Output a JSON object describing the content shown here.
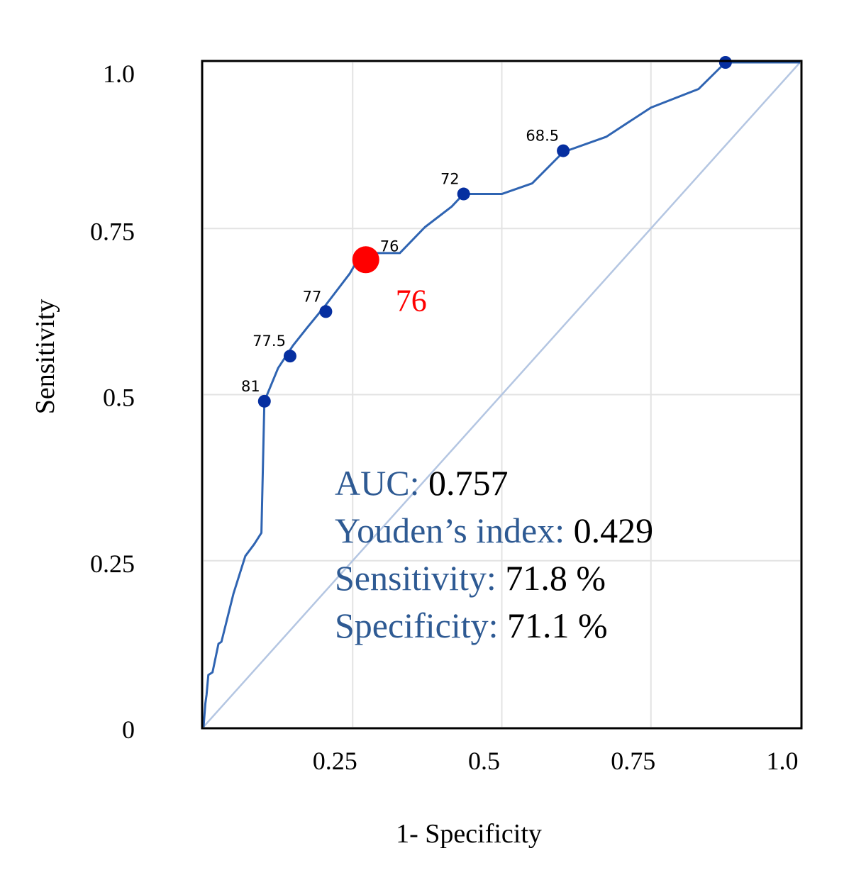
{
  "chart_data": {
    "type": "line",
    "xlabel": "1- Specificity",
    "ylabel": "Sensitivity",
    "xlim": [
      0.0,
      1.0
    ],
    "ylim": [
      0.0,
      1.0
    ],
    "grid": true,
    "x_ticks": [
      {
        "value": 0.25,
        "label": "0.25"
      },
      {
        "value": 0.5,
        "label": "0.5"
      },
      {
        "value": 0.75,
        "label": "0.75"
      },
      {
        "value": 1.0,
        "label": "1.0"
      }
    ],
    "y_ticks": [
      {
        "value": 0,
        "label": "0"
      },
      {
        "value": 0.25,
        "label": "0.25"
      },
      {
        "value": 0.5,
        "label": "0.5"
      },
      {
        "value": 0.75,
        "label": "0.75"
      },
      {
        "value": 1.0,
        "label": "1.0"
      }
    ],
    "roc_curve": [
      [
        0.0,
        0.0
      ],
      [
        0.003,
        0.035
      ],
      [
        0.005,
        0.048
      ],
      [
        0.008,
        0.078
      ],
      [
        0.015,
        0.082
      ],
      [
        0.025,
        0.125
      ],
      [
        0.03,
        0.128
      ],
      [
        0.05,
        0.2
      ],
      [
        0.07,
        0.257
      ],
      [
        0.085,
        0.275
      ],
      [
        0.097,
        0.292
      ],
      [
        0.102,
        0.49
      ],
      [
        0.125,
        0.54
      ],
      [
        0.15,
        0.574
      ],
      [
        0.173,
        0.6
      ],
      [
        0.205,
        0.635
      ],
      [
        0.245,
        0.682
      ],
      [
        0.265,
        0.713
      ],
      [
        0.329,
        0.713
      ],
      [
        0.371,
        0.752
      ],
      [
        0.416,
        0.783
      ],
      [
        0.436,
        0.802
      ],
      [
        0.5,
        0.802
      ],
      [
        0.551,
        0.818
      ],
      [
        0.603,
        0.865
      ],
      [
        0.675,
        0.888
      ],
      [
        0.75,
        0.932
      ],
      [
        0.83,
        0.96
      ],
      [
        0.875,
        1.0
      ],
      [
        1.0,
        1.0
      ]
    ],
    "points": [
      {
        "x": 0.102,
        "y": 0.49,
        "label": "81"
      },
      {
        "x": 0.145,
        "y": 0.558,
        "label": "77.5"
      },
      {
        "x": 0.205,
        "y": 0.625,
        "label": "77"
      },
      {
        "x": 0.436,
        "y": 0.802,
        "label": "72"
      },
      {
        "x": 0.603,
        "y": 0.867,
        "label": "68.5"
      },
      {
        "x": 0.875,
        "y": 1.0,
        "label": ""
      }
    ],
    "optimal_point": {
      "x": 0.272,
      "y": 0.703,
      "label": "76",
      "callout": "76"
    },
    "reference_line": [
      [
        0,
        0
      ],
      [
        1,
        1
      ]
    ],
    "colors": {
      "curve": "#2f64b2",
      "marker": "#062fa0",
      "optimal": "#ff0000",
      "reference": "#b4c6e2",
      "grid": "#e3e3e3",
      "stats_key": "#2e5a93"
    },
    "stats": [
      {
        "key": "AUC:",
        "value": "0.757"
      },
      {
        "key": "Youden’s index:",
        "value": "0.429"
      },
      {
        "key": "Sensitivity:",
        "value": "71.8 %"
      },
      {
        "key": "Specificity:",
        "value": "71.1 %"
      }
    ]
  }
}
